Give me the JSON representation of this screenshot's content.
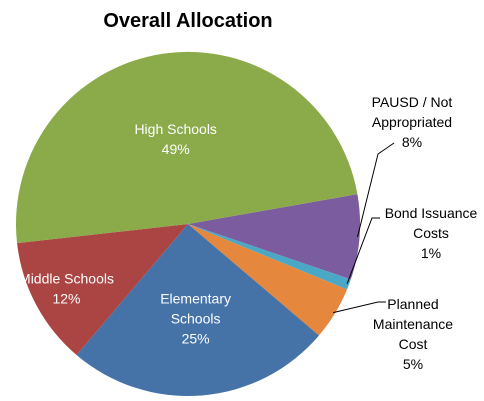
{
  "chart_data": {
    "type": "pie",
    "title": "Overall Allocation",
    "slices": [
      {
        "name": "PAUSD / Not Appropriated",
        "label_lines": [
          "PAUSD / Not",
          "Appropriated"
        ],
        "value": 8,
        "value_label": "8%",
        "color": "#7b5c9e"
      },
      {
        "name": "Bond Issuance Costs",
        "label_lines": [
          "Bond Issuance",
          "Costs"
        ],
        "value": 1,
        "value_label": "1%",
        "color": "#4aa7c6"
      },
      {
        "name": "Planned Maintenance Cost",
        "label_lines": [
          "Planned",
          "Maintenance",
          "Cost"
        ],
        "value": 5,
        "value_label": "5%",
        "color": "#e5883d"
      },
      {
        "name": "Elementary Schools",
        "label_lines": [
          "Elementary",
          "Schools"
        ],
        "value": 25,
        "value_label": "25%",
        "color": "#4573a8"
      },
      {
        "name": "Middle Schools",
        "label_lines": [
          "Middle Schools"
        ],
        "value": 12,
        "value_label": "12%",
        "color": "#ab4544"
      },
      {
        "name": "High Schools",
        "label_lines": [
          "High Schools"
        ],
        "value": 49,
        "value_label": "49%",
        "color": "#8bab4a"
      }
    ],
    "legend": "none"
  }
}
